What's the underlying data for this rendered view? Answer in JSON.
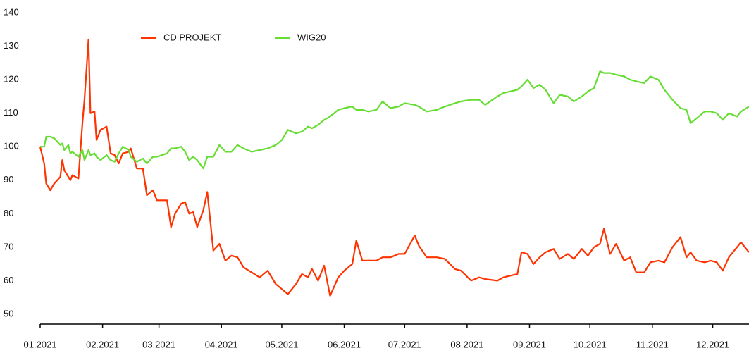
{
  "chart_data": {
    "type": "line",
    "x": [
      0,
      2,
      3,
      5,
      7,
      10,
      11,
      12,
      14,
      15,
      16,
      19,
      21,
      22,
      24,
      25,
      27,
      28,
      30,
      33,
      35,
      37,
      39,
      41,
      44,
      45,
      48,
      51,
      53,
      56,
      58,
      63,
      65,
      67,
      70,
      72,
      74,
      76,
      78,
      81,
      83,
      86,
      89,
      92,
      95,
      98,
      101,
      105,
      109,
      113,
      117,
      120,
      123,
      127,
      130,
      133,
      135,
      138,
      141,
      144,
      148,
      151,
      155,
      157,
      160,
      163,
      167,
      170,
      174,
      178,
      181,
      186,
      188,
      192,
      197,
      201,
      206,
      209,
      214,
      218,
      221,
      227,
      230,
      237,
      239,
      242,
      245,
      248,
      251,
      255,
      258,
      262,
      265,
      269,
      272,
      275,
      278,
      280,
      283,
      286,
      290,
      293,
      296,
      300,
      303,
      307,
      310,
      314,
      318,
      321,
      323,
      326,
      330,
      333,
      336,
      339,
      342,
      346,
      348,
      352
    ],
    "series": [
      {
        "name": "CD PROJEKT",
        "color": "#ff3300",
        "values": [
          100,
          95,
          89,
          87,
          89,
          91,
          96,
          93,
          91,
          90,
          91.5,
          90.5,
          107,
          114,
          132,
          110,
          110.5,
          102,
          105,
          106,
          98,
          97.5,
          95,
          98,
          98.5,
          99.5,
          93.5,
          93.5,
          85.5,
          87,
          84,
          84,
          76,
          80,
          83,
          83.5,
          80,
          80.5,
          76,
          81,
          86.5,
          69,
          71,
          66,
          67.5,
          67,
          64,
          62.5,
          61,
          63,
          59,
          57.5,
          56,
          59,
          62,
          61,
          63.5,
          60,
          64.5,
          55.5,
          61,
          63,
          65,
          72,
          66,
          66,
          66,
          67,
          67,
          68,
          68,
          73.5,
          70.5,
          67,
          67,
          66.5,
          63.5,
          63,
          60,
          61,
          60.5,
          60,
          61,
          62,
          68.5,
          68,
          65,
          67,
          68.5,
          69.5,
          66.5,
          68,
          66.5,
          69.5,
          67.5,
          70,
          71,
          75.5,
          68,
          71,
          66,
          67,
          62.5,
          62.5,
          65.5,
          66,
          65.5,
          70,
          73,
          67,
          68.5,
          66,
          65.5,
          66,
          65.5,
          63,
          67,
          70,
          71.5,
          68.5
        ]
      },
      {
        "name": "WIG20",
        "color": "#66dd33",
        "values": [
          100,
          100,
          103,
          103,
          102.5,
          100.5,
          101,
          99,
          100.5,
          98,
          98.5,
          97,
          99,
          96,
          99,
          97.5,
          98,
          97,
          96,
          97.5,
          96,
          95.5,
          98,
          100,
          99,
          97,
          95.5,
          96.5,
          95,
          97,
          97,
          98,
          99.5,
          99.5,
          100,
          98.5,
          96,
          97,
          96,
          93.5,
          97,
          97,
          100.5,
          98.5,
          98.5,
          100.5,
          99.5,
          98.5,
          99,
          99.5,
          100.5,
          102,
          105,
          104,
          104.5,
          106,
          105.5,
          106.5,
          108,
          109,
          111,
          111.5,
          112,
          111,
          111,
          110.5,
          111,
          113.5,
          111.5,
          112,
          113,
          112.5,
          112,
          110.5,
          111,
          112,
          113,
          113.5,
          114,
          114,
          112.5,
          115,
          116,
          117,
          118,
          120,
          117.5,
          118.5,
          117,
          113,
          115.5,
          115,
          113.5,
          115,
          116.5,
          117.5,
          122.5,
          122,
          122,
          121.5,
          121,
          120,
          119.5,
          119,
          121,
          120,
          117,
          114,
          111.5,
          111,
          107,
          108.5,
          110.5,
          110.5,
          110,
          108,
          110,
          109,
          110.5,
          112
        ]
      }
    ],
    "xlim": [
      0,
      352
    ],
    "xticks": [
      {
        "value": 0,
        "label": "01.2021"
      },
      {
        "value": 31,
        "label": "02.2021"
      },
      {
        "value": 59,
        "label": "03.2021"
      },
      {
        "value": 90,
        "label": "04.2021"
      },
      {
        "value": 120,
        "label": "05.2021"
      },
      {
        "value": 151,
        "label": "06.2021"
      },
      {
        "value": 181,
        "label": "07.2021"
      },
      {
        "value": 212,
        "label": "08.2021"
      },
      {
        "value": 243,
        "label": "09.2021"
      },
      {
        "value": 273,
        "label": "10.2021"
      },
      {
        "value": 304,
        "label": "11.2021"
      },
      {
        "value": 334,
        "label": "12.2021"
      }
    ],
    "ylim": [
      50,
      140
    ],
    "yticks": [
      50,
      60,
      70,
      80,
      90,
      100,
      110,
      120,
      130,
      140
    ],
    "grid": false,
    "legend": "top"
  }
}
